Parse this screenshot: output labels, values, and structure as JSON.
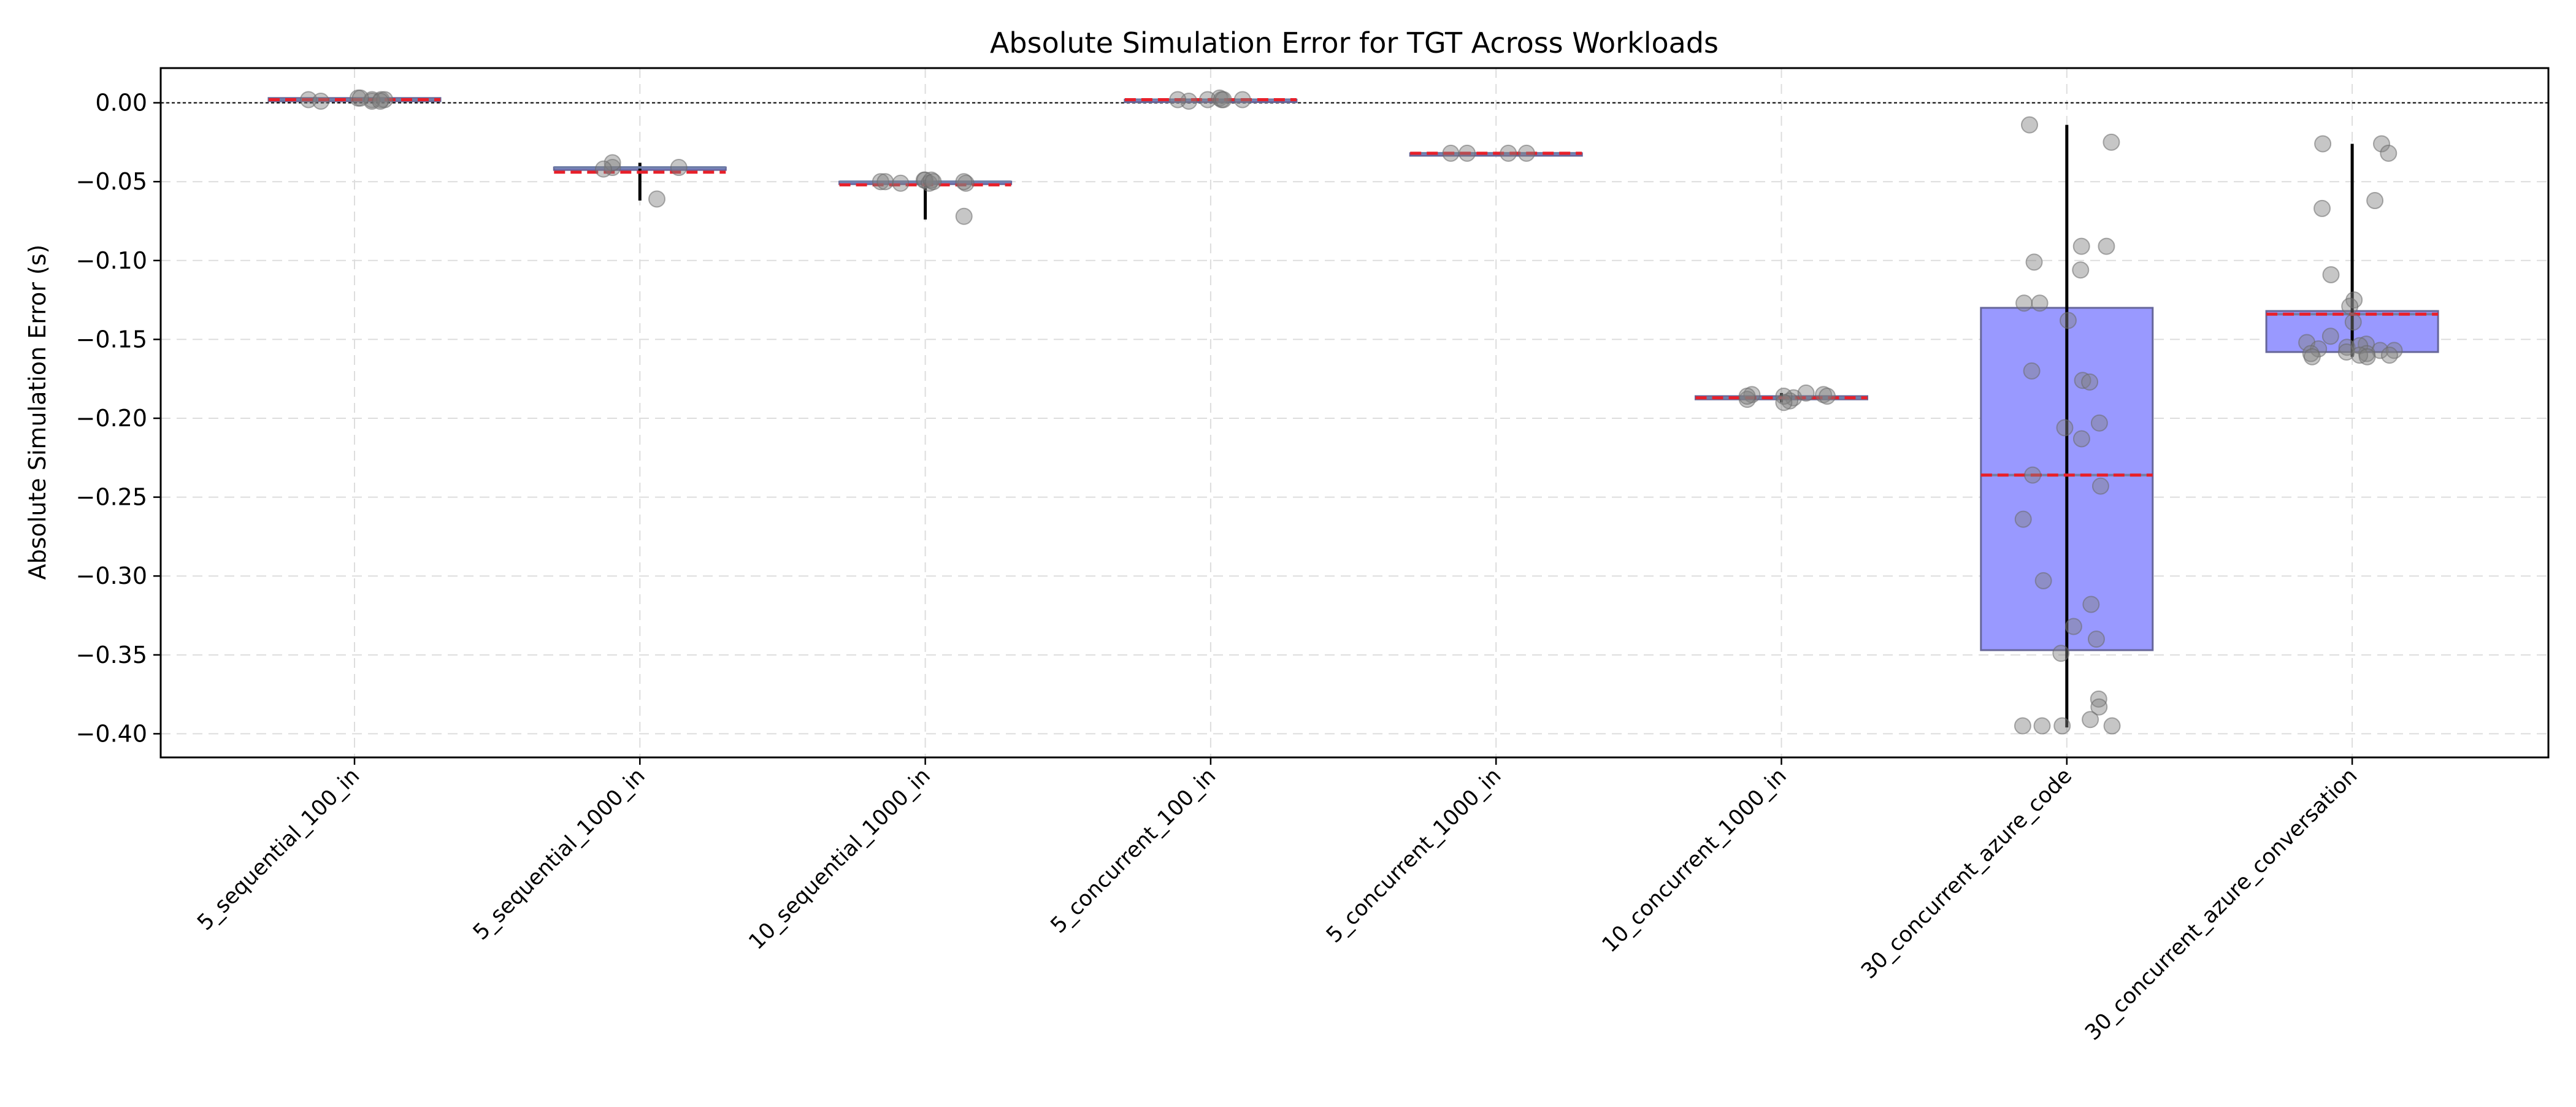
{
  "chart_data": {
    "type": "box",
    "title": "Absolute Simulation Error for TGT Across Workloads",
    "xlabel": "",
    "ylabel": "Absolute Simulation Error (s)",
    "ylim": [
      -0.415,
      0.022
    ],
    "yticks": [
      0.0,
      -0.05,
      -0.1,
      -0.15,
      -0.2,
      -0.25,
      -0.3,
      -0.35,
      -0.4
    ],
    "ytick_labels": [
      "0.00",
      "−0.05",
      "−0.10",
      "−0.15",
      "−0.20",
      "−0.25",
      "−0.30",
      "−0.35",
      "−0.40"
    ],
    "grid": true,
    "reference_line": 0.0,
    "colors": {
      "box_fill": "#9999ff",
      "box_edge": "#666699",
      "median": "#6f7fa8",
      "mean": "#e8202a",
      "whisker": "#000000",
      "points": "#808080",
      "grid": "#dddddd"
    },
    "categories": [
      "5_sequential_100_in",
      "5_sequential_1000_in",
      "10_sequential_1000_in",
      "5_concurrent_100_in",
      "5_concurrent_1000_in",
      "10_concurrent_1000_in",
      "30_concurrent_azure_code",
      "30_concurrent_azure_conversation"
    ],
    "boxes": [
      {
        "q1": 0.001,
        "median": 0.002,
        "q3": 0.003,
        "mean": 0.002,
        "whisker_low": 0.001,
        "whisker_high": 0.003,
        "points": [
          0.002,
          0.003,
          0.002,
          0.002,
          0.001,
          0.003,
          0.001,
          0.002,
          0.001
        ]
      },
      {
        "q1": -0.042,
        "median": -0.041,
        "q3": -0.041,
        "mean": -0.044,
        "whisker_low": -0.062,
        "whisker_high": -0.038,
        "points": [
          -0.041,
          -0.041,
          -0.061,
          -0.038,
          -0.042
        ]
      },
      {
        "q1": -0.051,
        "median": -0.05,
        "q3": -0.05,
        "mean": -0.052,
        "whisker_low": -0.074,
        "whisker_high": -0.049,
        "points": [
          -0.051,
          -0.05,
          -0.05,
          -0.049,
          -0.049,
          -0.05,
          -0.051,
          -0.051,
          -0.072,
          -0.049,
          -0.05
        ]
      },
      {
        "q1": 0.001,
        "median": 0.002,
        "q3": 0.002,
        "mean": 0.002,
        "whisker_low": 0.001,
        "whisker_high": 0.003,
        "points": [
          0.002,
          0.002,
          0.003,
          0.002,
          0.001,
          0.002,
          0.002
        ]
      },
      {
        "q1": -0.032,
        "median": -0.032,
        "q3": -0.032,
        "mean": -0.032,
        "whisker_low": -0.032,
        "whisker_high": -0.032,
        "points": [
          -0.032,
          -0.032,
          -0.032,
          -0.032
        ]
      },
      {
        "q1": -0.188,
        "median": -0.187,
        "q3": -0.186,
        "mean": -0.187,
        "whisker_low": -0.19,
        "whisker_high": -0.184,
        "points": [
          -0.185,
          -0.186,
          -0.185,
          -0.187,
          -0.189,
          -0.186,
          -0.184,
          -0.188,
          -0.19,
          -0.186
        ]
      },
      {
        "q1": -0.347,
        "median": -0.236,
        "q3": -0.13,
        "mean": -0.236,
        "whisker_low": -0.396,
        "whisker_high": -0.014,
        "points": [
          -0.014,
          -0.025,
          -0.091,
          -0.091,
          -0.101,
          -0.106,
          -0.127,
          -0.127,
          -0.138,
          -0.17,
          -0.176,
          -0.177,
          -0.203,
          -0.206,
          -0.213,
          -0.236,
          -0.243,
          -0.264,
          -0.303,
          -0.318,
          -0.332,
          -0.34,
          -0.349,
          -0.378,
          -0.383,
          -0.391,
          -0.395,
          -0.395,
          -0.395,
          -0.395
        ]
      },
      {
        "q1": -0.158,
        "median": -0.134,
        "q3": -0.132,
        "mean": -0.134,
        "whisker_low": -0.161,
        "whisker_high": -0.026,
        "points": [
          -0.026,
          -0.026,
          -0.032,
          -0.062,
          -0.067,
          -0.109,
          -0.125,
          -0.129,
          -0.139,
          -0.148,
          -0.152,
          -0.153,
          -0.154,
          -0.155,
          -0.156,
          -0.157,
          -0.157,
          -0.158,
          -0.159,
          -0.159,
          -0.16,
          -0.16,
          -0.161,
          -0.161
        ]
      }
    ]
  }
}
